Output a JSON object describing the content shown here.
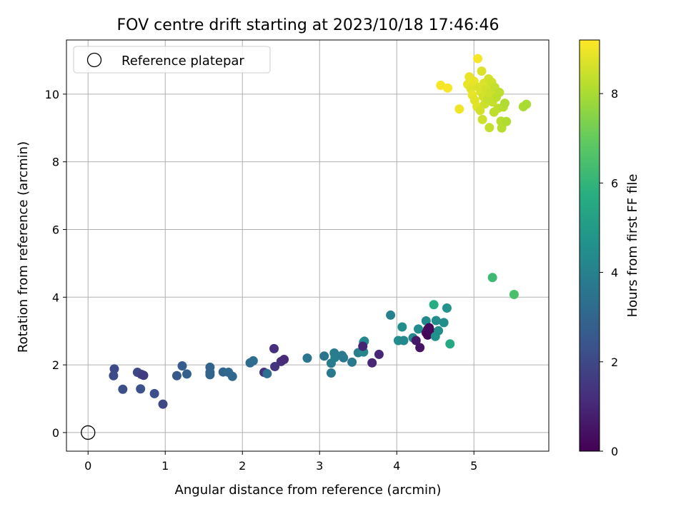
{
  "chart_data": {
    "type": "scatter",
    "title": "FOV centre drift starting at 2023/10/18 17:46:46",
    "xlabel": "Angular distance from reference (arcmin)",
    "ylabel": "Rotation from reference (arcmin)",
    "xlim": [
      -0.28,
      5.97
    ],
    "ylim": [
      -0.55,
      11.6
    ],
    "xticks": [
      0,
      1,
      2,
      3,
      4,
      5
    ],
    "yticks": [
      0,
      2,
      4,
      6,
      8,
      10
    ],
    "grid": true,
    "legend": {
      "position": "top-left",
      "entries": [
        "Reference platepar"
      ]
    },
    "reference_point": {
      "x": 0,
      "y": 0
    },
    "colorbar": {
      "label": "Hours from first FF file",
      "range": [
        0,
        9.2
      ],
      "ticks": [
        0,
        2,
        4,
        6,
        8
      ],
      "colormap": "viridis"
    },
    "series": [
      {
        "points": [
          {
            "x": 0.34,
            "y": 1.88,
            "c": 2.1
          },
          {
            "x": 0.33,
            "y": 1.68,
            "c": 2.1
          },
          {
            "x": 0.45,
            "y": 1.28,
            "c": 2.2
          },
          {
            "x": 0.64,
            "y": 1.78,
            "c": 2.0
          },
          {
            "x": 0.69,
            "y": 1.72,
            "c": 1.8
          },
          {
            "x": 0.72,
            "y": 1.69,
            "c": 1.6
          },
          {
            "x": 0.68,
            "y": 1.29,
            "c": 2.3
          },
          {
            "x": 0.86,
            "y": 1.15,
            "c": 2.2
          },
          {
            "x": 0.97,
            "y": 0.84,
            "c": 2.0
          },
          {
            "x": 1.15,
            "y": 1.68,
            "c": 2.5
          },
          {
            "x": 1.22,
            "y": 1.97,
            "c": 2.7
          },
          {
            "x": 1.28,
            "y": 1.73,
            "c": 2.8
          },
          {
            "x": 1.58,
            "y": 1.93,
            "c": 2.9
          },
          {
            "x": 1.58,
            "y": 1.78,
            "c": 2.9
          },
          {
            "x": 1.58,
            "y": 1.71,
            "c": 3.0
          },
          {
            "x": 1.75,
            "y": 1.79,
            "c": 3.0
          },
          {
            "x": 1.82,
            "y": 1.78,
            "c": 3.1
          },
          {
            "x": 1.87,
            "y": 1.66,
            "c": 3.1
          },
          {
            "x": 2.1,
            "y": 2.06,
            "c": 3.2
          },
          {
            "x": 2.14,
            "y": 2.12,
            "c": 3.3
          },
          {
            "x": 2.28,
            "y": 1.78,
            "c": 1.3
          },
          {
            "x": 2.32,
            "y": 1.74,
            "c": 3.3
          },
          {
            "x": 2.41,
            "y": 2.48,
            "c": 1.2
          },
          {
            "x": 2.42,
            "y": 1.95,
            "c": 1.4
          },
          {
            "x": 2.5,
            "y": 2.1,
            "c": 1.2
          },
          {
            "x": 2.54,
            "y": 2.16,
            "c": 1.1
          },
          {
            "x": 2.84,
            "y": 2.2,
            "c": 3.6
          },
          {
            "x": 3.06,
            "y": 2.26,
            "c": 3.5
          },
          {
            "x": 3.15,
            "y": 1.76,
            "c": 3.7
          },
          {
            "x": 3.15,
            "y": 2.05,
            "c": 3.8
          },
          {
            "x": 3.19,
            "y": 2.35,
            "c": 3.8
          },
          {
            "x": 3.2,
            "y": 2.22,
            "c": 3.9
          },
          {
            "x": 3.29,
            "y": 2.28,
            "c": 3.8
          },
          {
            "x": 3.31,
            "y": 2.21,
            "c": 3.7
          },
          {
            "x": 3.42,
            "y": 2.08,
            "c": 3.7
          },
          {
            "x": 3.5,
            "y": 2.36,
            "c": 3.9
          },
          {
            "x": 3.57,
            "y": 2.38,
            "c": 4.2
          },
          {
            "x": 3.57,
            "y": 2.67,
            "c": 4.2
          },
          {
            "x": 3.58,
            "y": 2.7,
            "c": 4.3
          },
          {
            "x": 3.56,
            "y": 2.55,
            "c": 0.9
          },
          {
            "x": 3.68,
            "y": 2.06,
            "c": 1.0
          },
          {
            "x": 3.77,
            "y": 2.31,
            "c": 1.0
          },
          {
            "x": 3.92,
            "y": 3.47,
            "c": 4.0
          },
          {
            "x": 4.02,
            "y": 2.72,
            "c": 4.4
          },
          {
            "x": 4.09,
            "y": 2.72,
            "c": 4.3
          },
          {
            "x": 4.07,
            "y": 3.12,
            "c": 4.5
          },
          {
            "x": 4.21,
            "y": 2.8,
            "c": 4.3
          },
          {
            "x": 4.25,
            "y": 2.72,
            "c": 0.6
          },
          {
            "x": 4.28,
            "y": 3.06,
            "c": 4.4
          },
          {
            "x": 4.3,
            "y": 2.51,
            "c": 0.5
          },
          {
            "x": 4.38,
            "y": 3.3,
            "c": 4.3
          },
          {
            "x": 4.38,
            "y": 2.95,
            "c": 0.4
          },
          {
            "x": 4.4,
            "y": 3.05,
            "c": 0.3
          },
          {
            "x": 4.42,
            "y": 3.1,
            "c": 0.2
          },
          {
            "x": 4.4,
            "y": 2.88,
            "c": 0.1
          },
          {
            "x": 4.44,
            "y": 2.99,
            "c": 0.2
          },
          {
            "x": 4.48,
            "y": 3.78,
            "c": 5.7
          },
          {
            "x": 4.5,
            "y": 2.84,
            "c": 4.6
          },
          {
            "x": 4.51,
            "y": 3.31,
            "c": 4.4
          },
          {
            "x": 4.54,
            "y": 3.01,
            "c": 4.5
          },
          {
            "x": 4.61,
            "y": 3.25,
            "c": 4.5
          },
          {
            "x": 4.65,
            "y": 3.68,
            "c": 4.7
          },
          {
            "x": 4.69,
            "y": 2.62,
            "c": 5.5
          },
          {
            "x": 5.24,
            "y": 4.58,
            "c": 6.2
          },
          {
            "x": 5.52,
            "y": 4.08,
            "c": 6.5
          },
          {
            "x": 4.57,
            "y": 10.26,
            "c": 9.1
          },
          {
            "x": 4.66,
            "y": 10.18,
            "c": 9.1
          },
          {
            "x": 4.81,
            "y": 9.56,
            "c": 9.0
          },
          {
            "x": 4.92,
            "y": 10.29,
            "c": 8.9
          },
          {
            "x": 4.94,
            "y": 10.51,
            "c": 8.9
          },
          {
            "x": 4.96,
            "y": 10.16,
            "c": 8.8
          },
          {
            "x": 4.98,
            "y": 9.97,
            "c": 8.9
          },
          {
            "x": 5.0,
            "y": 10.38,
            "c": 8.9
          },
          {
            "x": 5.01,
            "y": 9.82,
            "c": 8.8
          },
          {
            "x": 5.04,
            "y": 9.63,
            "c": 8.8
          },
          {
            "x": 5.05,
            "y": 11.05,
            "c": 9.1
          },
          {
            "x": 5.06,
            "y": 10.2,
            "c": 8.7
          },
          {
            "x": 5.08,
            "y": 9.52,
            "c": 8.6
          },
          {
            "x": 5.09,
            "y": 10.07,
            "c": 8.7
          },
          {
            "x": 5.1,
            "y": 10.68,
            "c": 8.7
          },
          {
            "x": 5.11,
            "y": 9.25,
            "c": 8.5
          },
          {
            "x": 5.12,
            "y": 9.93,
            "c": 8.6
          },
          {
            "x": 5.13,
            "y": 10.32,
            "c": 8.7
          },
          {
            "x": 5.14,
            "y": 9.71,
            "c": 8.5
          },
          {
            "x": 5.16,
            "y": 10.14,
            "c": 8.6
          },
          {
            "x": 5.18,
            "y": 9.84,
            "c": 8.4
          },
          {
            "x": 5.19,
            "y": 10.45,
            "c": 8.6
          },
          {
            "x": 5.2,
            "y": 9.01,
            "c": 8.4
          },
          {
            "x": 5.21,
            "y": 10.02,
            "c": 8.5
          },
          {
            "x": 5.23,
            "y": 10.35,
            "c": 8.5
          },
          {
            "x": 5.24,
            "y": 9.77,
            "c": 8.4
          },
          {
            "x": 5.26,
            "y": 9.47,
            "c": 8.3
          },
          {
            "x": 5.27,
            "y": 10.2,
            "c": 8.4
          },
          {
            "x": 5.29,
            "y": 9.91,
            "c": 8.3
          },
          {
            "x": 5.31,
            "y": 9.58,
            "c": 8.3
          },
          {
            "x": 5.33,
            "y": 10.05,
            "c": 8.3
          },
          {
            "x": 5.35,
            "y": 9.2,
            "c": 8.2
          },
          {
            "x": 5.36,
            "y": 9.0,
            "c": 8.2
          },
          {
            "x": 5.38,
            "y": 9.62,
            "c": 8.2
          },
          {
            "x": 5.4,
            "y": 9.73,
            "c": 8.1
          },
          {
            "x": 5.42,
            "y": 9.19,
            "c": 8.1
          },
          {
            "x": 5.64,
            "y": 9.63,
            "c": 8.0
          },
          {
            "x": 5.68,
            "y": 9.7,
            "c": 8.0
          }
        ]
      }
    ]
  }
}
